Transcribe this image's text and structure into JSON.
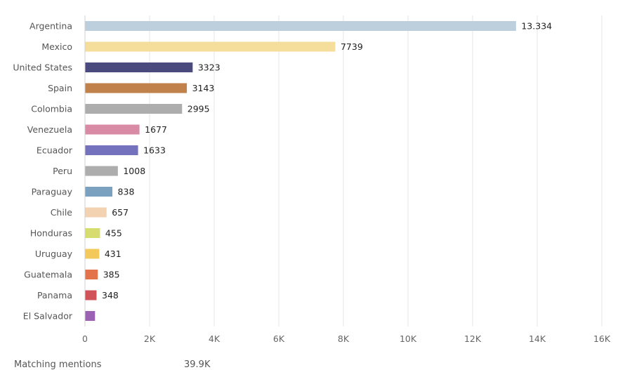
{
  "chart_data": {
    "type": "bar",
    "orientation": "horizontal",
    "categories": [
      "Argentina",
      "Mexico",
      "United States",
      "Spain",
      "Colombia",
      "Venezuela",
      "Ecuador",
      "Peru",
      "Paraguay",
      "Chile",
      "Honduras",
      "Uruguay",
      "Guatemala",
      "Panama",
      "El Salvador"
    ],
    "values": [
      13334,
      7739,
      3323,
      3143,
      2995,
      1677,
      1633,
      1008,
      838,
      657,
      455,
      431,
      385,
      348,
      300
    ],
    "value_labels": [
      "13.334",
      "7739",
      "3323",
      "3143",
      "2995",
      "1677",
      "1633",
      "1008",
      "838",
      "657",
      "455",
      "431",
      "385",
      "348",
      ""
    ],
    "colors": [
      "#bdcfdc",
      "#f5de9c",
      "#4b4a7e",
      "#c0824a",
      "#adadad",
      "#d98aa4",
      "#7472bd",
      "#adadad",
      "#7aa1c0",
      "#f2d2b0",
      "#d6dc6e",
      "#f3c95c",
      "#e2734b",
      "#d1535a",
      "#9b62b3"
    ],
    "xlim": [
      0,
      16000
    ],
    "xticks": [
      0,
      2000,
      4000,
      6000,
      8000,
      10000,
      12000,
      14000,
      16000
    ],
    "xtick_labels": [
      "0",
      "2K",
      "4K",
      "6K",
      "8K",
      "10K",
      "12K",
      "14K",
      "16K"
    ],
    "grid": true,
    "title": "",
    "xlabel": "",
    "ylabel": ""
  },
  "footer": {
    "label": "Matching mentions",
    "value": "39.9K"
  }
}
